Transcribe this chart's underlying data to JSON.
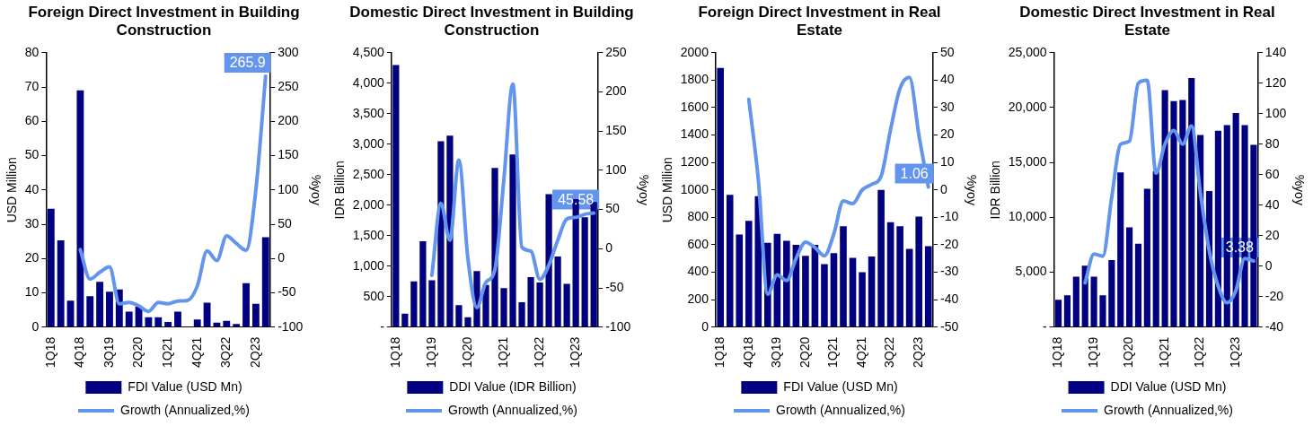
{
  "chart_data": [
    {
      "type": "bar",
      "title": "Foreign Direct Investment in Building Construction",
      "ylabel": "USD Million",
      "y2label": "%yoy",
      "legend": "bottom",
      "categories": [
        "1Q18",
        null,
        null,
        "4Q18",
        null,
        null,
        "3Q19",
        null,
        null,
        "2Q20",
        null,
        null,
        "1Q21",
        null,
        null,
        "4Q21",
        null,
        null,
        "3Q22",
        null,
        null,
        "2Q23",
        null
      ],
      "series": [
        {
          "name": "FDI Value (USD Mn)",
          "color": "#000080",
          "values": [
            34.5,
            25.3,
            7.7,
            69,
            9,
            13.2,
            10.3,
            11,
            4.5,
            6,
            2.9,
            2.9,
            1.5,
            4.5,
            0,
            2.2,
            7.1,
            1.3,
            1.8,
            0.9,
            12.8,
            6.8,
            26.2
          ]
        },
        {
          "name": "Growth (Annualized,%)",
          "type": "line",
          "axis": "y2",
          "color": "#6495ed",
          "values": [
            null,
            null,
            null,
            13,
            -30,
            -20,
            -12,
            -66,
            -64,
            -69,
            -77,
            -64,
            -66,
            -62,
            -61,
            -40,
            11,
            -3,
            33,
            22,
            12,
            100,
            265.9
          ],
          "value_labels": [
            null,
            null,
            null,
            null,
            null,
            null,
            null,
            null,
            null,
            null,
            null,
            null,
            null,
            null,
            null,
            null,
            null,
            null,
            null,
            null,
            null,
            null,
            "265.9"
          ]
        }
      ],
      "ylim": [
        0,
        80
      ],
      "yticks": [
        0,
        10,
        20,
        30,
        40,
        50,
        60,
        70,
        80
      ],
      "y2lim": [
        -100,
        300
      ],
      "y2ticks": [
        -100,
        -50,
        0,
        50,
        100,
        150,
        200,
        250,
        300
      ],
      "marker": "none"
    },
    {
      "type": "bar",
      "title": "Domestic Direct Investment in Building Construction",
      "ylabel": "IDR Billion",
      "y2label": "%yoy",
      "legend": "bottom",
      "categories": [
        "1Q18",
        null,
        null,
        null,
        "1Q19",
        null,
        null,
        null,
        "1Q20",
        null,
        null,
        null,
        "1Q21",
        null,
        null,
        null,
        "1Q22",
        null,
        null,
        null,
        "1Q23",
        null,
        null
      ],
      "series": [
        {
          "name": "DDI Value (IDR Billion)",
          "color": "#000080",
          "values": [
            4300,
            220,
            750,
            1410,
            770,
            3050,
            3140,
            360,
            160,
            920,
            690,
            2610,
            640,
            2830,
            410,
            820,
            730,
            2180,
            1160,
            710,
            2100,
            1800,
            2050
          ]
        },
        {
          "name": "Growth (Annualized,%)",
          "type": "line",
          "axis": "y2",
          "color": "#6495ed",
          "values": [
            null,
            null,
            null,
            null,
            -34,
            58,
            11,
            113,
            -12,
            -75,
            -43,
            -27,
            88,
            210,
            2,
            -3,
            -39,
            -21,
            11,
            38,
            40,
            44,
            45.58
          ],
          "value_labels": [
            null,
            null,
            null,
            null,
            null,
            null,
            null,
            null,
            null,
            null,
            null,
            null,
            null,
            null,
            null,
            null,
            null,
            null,
            null,
            null,
            null,
            null,
            "45.58"
          ]
        }
      ],
      "ylim": [
        0,
        4500
      ],
      "yticks": [
        {
          "value": 0,
          "label": "-"
        },
        500,
        {
          "value": 1000,
          "label": "1,000"
        },
        {
          "value": 1500,
          "label": "1,500"
        },
        {
          "value": 2000,
          "label": "2,000"
        },
        {
          "value": 2500,
          "label": "2,500"
        },
        {
          "value": 3000,
          "label": "3,000"
        },
        {
          "value": 3500,
          "label": "3,500"
        },
        {
          "value": 4000,
          "label": "4,000"
        },
        {
          "value": 4500,
          "label": "4,500"
        }
      ],
      "y2lim": [
        -100,
        250
      ],
      "y2ticks": [
        -100,
        -50,
        0,
        50,
        100,
        150,
        200,
        250
      ],
      "marker": "none"
    },
    {
      "type": "bar",
      "title": "Foreign Direct Investment in Real Estate",
      "ylabel": "USD Million",
      "y2label": "%yoy",
      "legend": "bottom",
      "categories": [
        "1Q18",
        null,
        null,
        "4Q18",
        null,
        null,
        "3Q19",
        null,
        null,
        "2Q20",
        null,
        null,
        "1Q21",
        null,
        null,
        "4Q21",
        null,
        null,
        "3Q22",
        null,
        null,
        "2Q23",
        null
      ],
      "series": [
        {
          "name": "FDI Value (USD Mn)",
          "color": "#000080",
          "values": [
            1890,
            965,
            675,
            775,
            955,
            615,
            680,
            630,
            600,
            520,
            600,
            460,
            540,
            735,
            505,
            400,
            515,
            1000,
            765,
            735,
            570,
            805,
            590
          ]
        },
        {
          "name": "Growth (Annualized,%)",
          "type": "line",
          "axis": "y2",
          "color": "#6495ed",
          "values": [
            null,
            null,
            null,
            33,
            4,
            -38,
            -31,
            -33,
            -25,
            -19,
            -21,
            -24,
            -16,
            -4,
            -5,
            0,
            2,
            5,
            22,
            37,
            41,
            20,
            1.06
          ],
          "value_labels": [
            null,
            null,
            null,
            null,
            null,
            null,
            null,
            null,
            null,
            null,
            null,
            null,
            null,
            null,
            null,
            null,
            null,
            null,
            null,
            null,
            null,
            null,
            "1.06"
          ]
        }
      ],
      "ylim": [
        0,
        2000
      ],
      "yticks": [
        0,
        200,
        400,
        600,
        800,
        1000,
        1200,
        1400,
        1600,
        1800,
        2000
      ],
      "y2lim": [
        -50,
        50
      ],
      "y2ticks": [
        -50,
        -40,
        -30,
        -20,
        -10,
        0,
        10,
        20,
        30,
        40,
        50
      ],
      "marker": "none"
    },
    {
      "type": "bar",
      "title": "Domestic Direct Investment in Real Estate",
      "ylabel": "IDR Billion",
      "y2label": "%yoy",
      "legend": "bottom",
      "categories": [
        "1Q18",
        null,
        null,
        null,
        "1Q19",
        null,
        null,
        null,
        "1Q20",
        null,
        null,
        null,
        "1Q21",
        null,
        null,
        null,
        "1Q22",
        null,
        null,
        null,
        "1Q23",
        null,
        null
      ],
      "series": [
        {
          "name": "DDI Value (USD Mn)",
          "color": "#000080",
          "values": [
            2500,
            2900,
            4600,
            5600,
            4600,
            2900,
            6100,
            14100,
            9100,
            7600,
            12600,
            14200,
            21600,
            20600,
            20700,
            22700,
            17500,
            12400,
            17900,
            18400,
            19500,
            18400,
            16600
          ]
        },
        {
          "name": "Growth (Annualized,%)",
          "type": "line",
          "axis": "y2",
          "color": "#6495ed",
          "values": [
            null,
            null,
            null,
            -11,
            8,
            6.5,
            45,
            80,
            82,
            120,
            122,
            61,
            80,
            89,
            80,
            92,
            48,
            10,
            -13,
            -24,
            -16,
            5,
            3.38
          ],
          "value_labels": [
            null,
            null,
            null,
            null,
            null,
            null,
            null,
            null,
            null,
            null,
            null,
            null,
            null,
            null,
            null,
            null,
            null,
            null,
            null,
            null,
            null,
            null,
            "3.38"
          ]
        }
      ],
      "ylim": [
        0,
        25000
      ],
      "yticks": [
        {
          "value": 0,
          "label": "-"
        },
        {
          "value": 5000,
          "label": "5,000"
        },
        {
          "value": 10000,
          "label": "10,000"
        },
        {
          "value": 15000,
          "label": "15,000"
        },
        {
          "value": 20000,
          "label": "20,000"
        },
        {
          "value": 25000,
          "label": "25,000"
        }
      ],
      "y2lim": [
        -40,
        140
      ],
      "y2ticks": [
        -40,
        -20,
        0,
        20,
        40,
        60,
        80,
        100,
        120,
        140
      ],
      "marker": "none"
    }
  ]
}
